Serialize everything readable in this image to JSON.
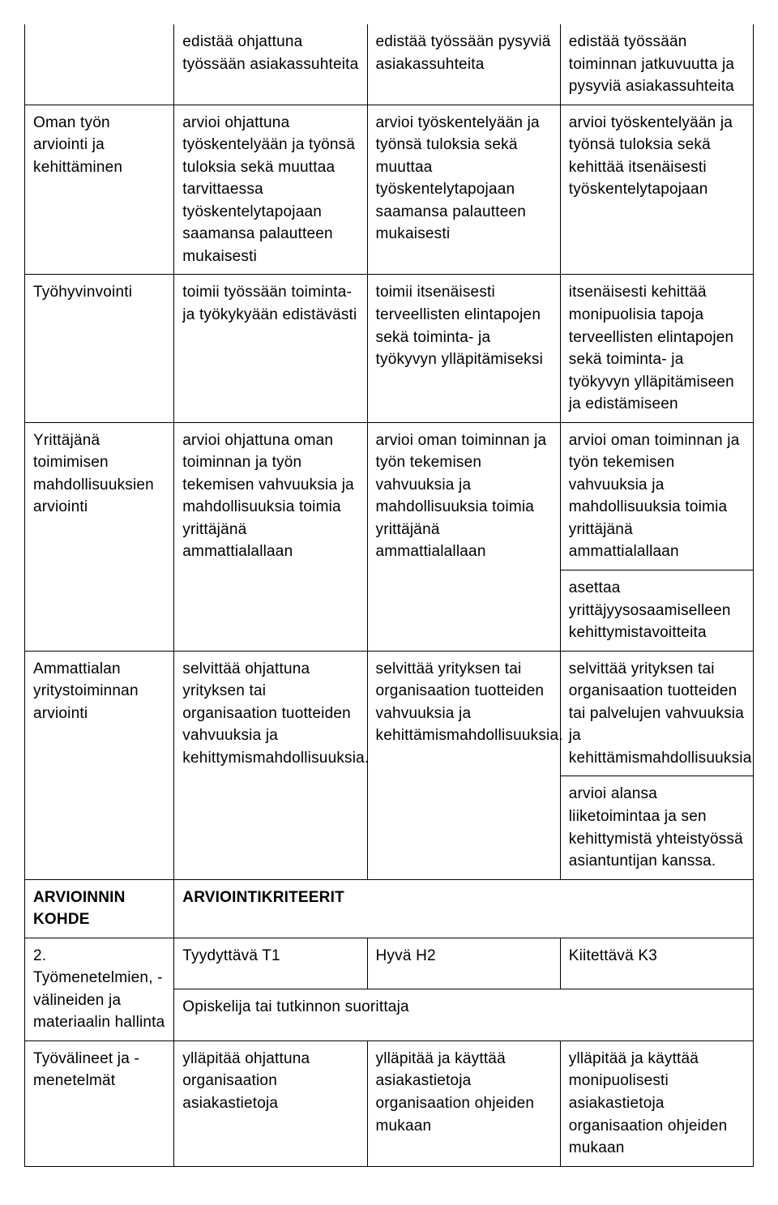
{
  "colors": {
    "border": "#000000",
    "text": "#000000",
    "background": "#ffffff"
  },
  "typography": {
    "base_fontsize": 19,
    "line_height": 1.45,
    "weight_normal": 300,
    "weight_bold": 600,
    "font_family": "Helvetica Neue condensed / Arial Narrow"
  },
  "layout": {
    "columns": 4,
    "col_widths_pct": [
      20.5,
      26.5,
      26.5,
      26.5
    ]
  },
  "rows": [
    {
      "c0": "",
      "c1": "edistää ohjattuna työssään asiakassuhteita",
      "c2": "edistää työssään pysyviä asiakassuhteita",
      "c3": "edistää työssään toiminnan jatkuvuutta ja pysyviä asiakassuhteita"
    },
    {
      "c0": "Oman työn arviointi ja kehittäminen",
      "c1": "arvioi ohjattuna työskentelyään ja työnsä tuloksia sekä muuttaa tarvittaessa työskentelytapojaan saamansa palautteen mukaisesti",
      "c2": "arvioi työskentelyään ja työnsä tuloksia sekä muuttaa työskentelytapojaan saamansa palautteen mukaisesti",
      "c3": "arvioi työskentelyään ja työnsä tuloksia sekä kehittää itsenäisesti työskentelytapojaan"
    },
    {
      "c0": "Työhyvinvointi",
      "c1": "toimii työssään toiminta- ja työkykyään edistävästi",
      "c2": "toimii itsenäisesti terveellisten elintapojen sekä toiminta- ja työkyvyn ylläpitämiseksi",
      "c3": "itsenäisesti kehittää monipuolisia tapoja terveellisten elintapojen sekä toiminta- ja työkyvyn ylläpitämiseen ja edistämiseen"
    },
    {
      "c0": "Yrittäjänä toimimisen mahdollisuuksien arviointi",
      "c0_rowspan": 2,
      "c1": "arvioi ohjattuna oman toiminnan ja työn tekemisen vahvuuksia ja mahdollisuuksia toimia yrittäjänä ammattialallaan",
      "c1_rowspan": 2,
      "c2": "arvioi oman toiminnan ja työn tekemisen vahvuuksia ja mahdollisuuksia toimia yrittäjänä ammattialallaan",
      "c2_rowspan": 2,
      "c3": "arvioi oman toiminnan ja työn tekemisen vahvuuksia ja mahdollisuuksia toimia yrittäjänä ammattialallaan"
    },
    {
      "c3": "asettaa yrittäjyysosaamiselleen kehittymistavoitteita"
    },
    {
      "c0": "Ammattialan yritystoiminnan arviointi",
      "c0_rowspan": 2,
      "c1": "selvittää ohjattuna yrityksen tai organisaation tuotteiden vahvuuksia ja kehittymismahdollisuuksia.",
      "c1_rowspan": 2,
      "c2": "selvittää yrityksen tai organisaation tuotteiden vahvuuksia ja kehittämismahdollisuuksia.",
      "c2_rowspan": 2,
      "c3": "selvittää yrityksen tai organisaation tuotteiden tai palvelujen vahvuuksia ja kehittämismahdollisuuksia"
    },
    {
      "c3": "arvioi alansa liiketoimintaa ja sen kehittymistä yhteistyössä asiantuntijan kanssa."
    },
    {
      "header": true,
      "c0": "ARVIOINNIN KOHDE",
      "c1": "ARVIOINTIKRITEERIT",
      "c1_colspan": 3
    },
    {
      "c0": "2. Työmenetelmien, -välineiden ja materiaalin hallinta",
      "c0_rowspan": 2,
      "c1": "Tyydyttävä T1",
      "c2": "Hyvä H2",
      "c3": "Kiitettävä K3"
    },
    {
      "c1": "Opiskelija tai tutkinnon suorittaja",
      "c1_colspan": 3
    },
    {
      "c0": "Työvälineet ja -menetelmät",
      "c1": "ylläpitää ohjattuna organisaation asiakastietoja",
      "c2": "ylläpitää ja käyttää asiakastietoja organisaation ohjeiden mukaan",
      "c3": "ylläpitää ja käyttää monipuolisesti asiakastietoja organisaation ohjeiden mukaan"
    }
  ]
}
